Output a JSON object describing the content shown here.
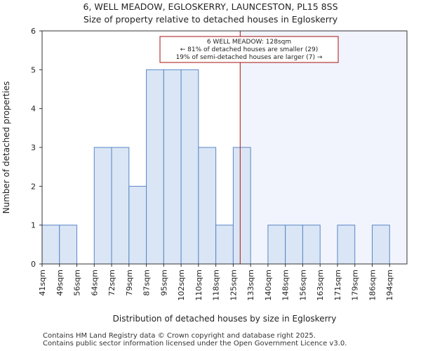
{
  "chart_data": {
    "type": "bar",
    "title_line1": "6, WELL MEADOW, EGLOSKERRY, LAUNCESTON, PL15 8SS",
    "title_line2": "Size of property relative to detached houses in Egloskerry",
    "xlabel": "Distribution of detached houses by size in Egloskerry",
    "ylabel": "Number of detached properties",
    "categories": [
      "41sqm",
      "49sqm",
      "56sqm",
      "64sqm",
      "72sqm",
      "79sqm",
      "87sqm",
      "95sqm",
      "102sqm",
      "110sqm",
      "118sqm",
      "125sqm",
      "133sqm",
      "140sqm",
      "148sqm",
      "156sqm",
      "163sqm",
      "171sqm",
      "179sqm",
      "186sqm",
      "194sqm"
    ],
    "values": [
      1,
      1,
      0,
      3,
      3,
      2,
      5,
      5,
      5,
      3,
      1,
      3,
      0,
      1,
      1,
      1,
      0,
      1,
      0,
      1,
      0
    ],
    "yticks": [
      "0",
      "1",
      "2",
      "3",
      "4",
      "5",
      "6"
    ],
    "ylim": [
      0,
      6
    ],
    "marker_value_sqm": 128,
    "marker_bin_position": 11.4,
    "annotation": {
      "line1": "6 WELL MEADOW: 128sqm",
      "line2": "← 81% of detached houses are smaller (29)",
      "line3": "19% of semi-detached houses are larger (7) →"
    },
    "colors": {
      "bar_fill": "#dae6f5",
      "bar_edge": "#5b86c8",
      "marker": "#aa1111",
      "highlight_region": "#f1f4fc"
    }
  },
  "footer": {
    "line1": "Contains HM Land Registry data © Crown copyright and database right 2025.",
    "line2": "Contains public sector information licensed under the Open Government Licence v3.0."
  }
}
